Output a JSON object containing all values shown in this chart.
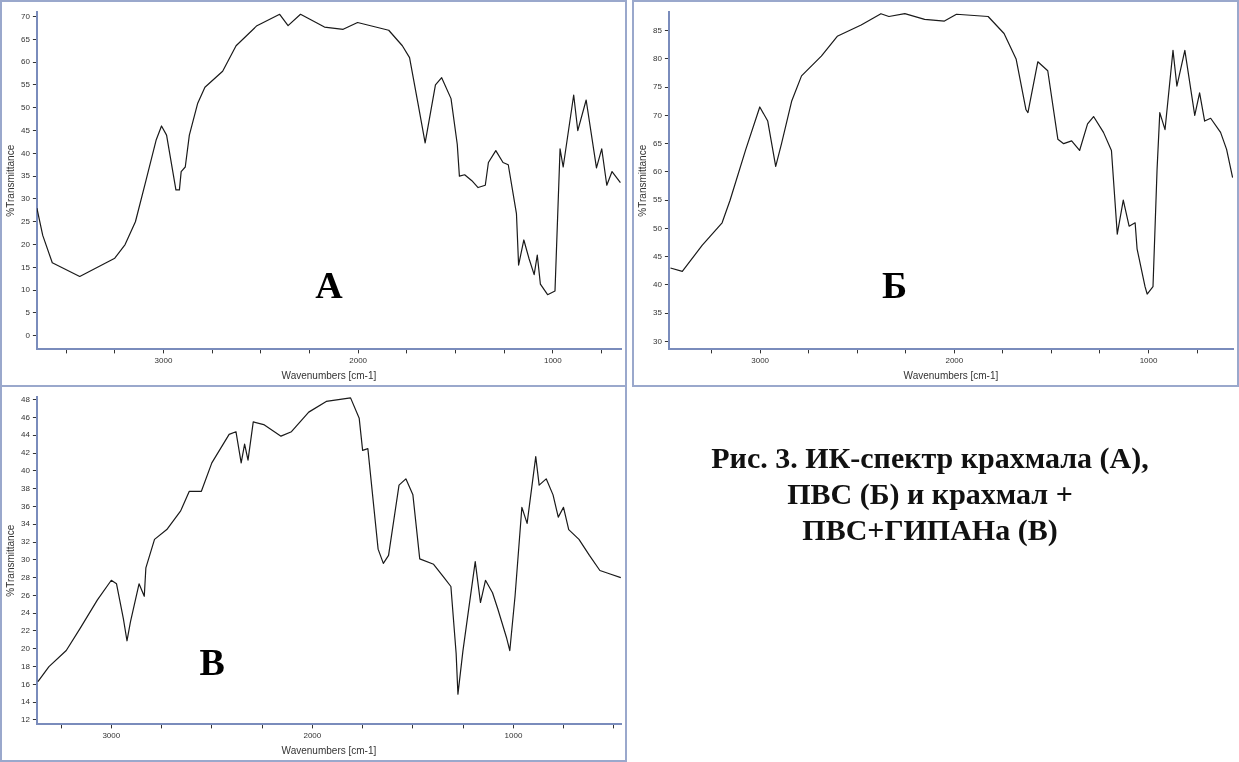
{
  "chart_data": [
    {
      "type": "line",
      "xlabel": "Wavenumbers [cm-1]",
      "ylabel": "%Transmittance",
      "annotations": [
        "А"
      ],
      "marker": "none",
      "grid": false,
      "legend": false,
      "xlim": [
        3650,
        650
      ],
      "xticks": [
        {
          "value": 3500,
          "label": null
        },
        {
          "value": 3250,
          "label": null
        },
        3000,
        {
          "value": 2750,
          "label": null
        },
        {
          "value": 2500,
          "label": null
        },
        {
          "value": 2250,
          "label": null
        },
        2000,
        {
          "value": 1750,
          "label": null
        },
        {
          "value": 1500,
          "label": null
        },
        {
          "value": 1250,
          "label": null
        },
        1000,
        {
          "value": 750,
          "label": null
        }
      ],
      "ylim": [
        -3,
        71
      ],
      "yticks": [
        0,
        5,
        10,
        15,
        20,
        25,
        30,
        35,
        40,
        45,
        50,
        55,
        60,
        65,
        70
      ],
      "series": [
        {
          "color": "#1a1a1a",
          "x": [
            3650,
            3620,
            3571,
            3430,
            3250,
            3197,
            3144,
            3090,
            3037,
            3010,
            2984,
            2936,
            2918,
            2909,
            2888,
            2867,
            2824,
            2787,
            2696,
            2627,
            2520,
            2403,
            2360,
            2296,
            2173,
            2077,
            2003,
            1843,
            1773,
            1736,
            1693,
            1656,
            1603,
            1571,
            1523,
            1491,
            1480,
            1453,
            1416,
            1384,
            1347,
            1331,
            1293,
            1256,
            1229,
            1187,
            1176,
            1149,
            1123,
            1096,
            1080,
            1064,
            1027,
            989,
            963,
            947,
            893,
            872,
            829,
            776,
            749,
            723,
            696,
            653
          ],
          "values": [
            28,
            22,
            16,
            13,
            17,
            20,
            25,
            34,
            43,
            46,
            44,
            32,
            32,
            36,
            37,
            44,
            51,
            54.5,
            58,
            63.6,
            68,
            70.5,
            68,
            70.5,
            67.7,
            67.2,
            68.7,
            67,
            63.6,
            61,
            51,
            42.3,
            55,
            56.6,
            52,
            42,
            35,
            35.3,
            34,
            32.5,
            33,
            38,
            40.6,
            38,
            37.5,
            26.8,
            15.5,
            21,
            17,
            13.4,
            17.7,
            11.3,
            9,
            9.8,
            41,
            37,
            52.8,
            45,
            51.7,
            36.8,
            41,
            33,
            36,
            33.6
          ]
        }
      ]
    },
    {
      "type": "line",
      "xlabel": "Wavenumbers [cm-1]",
      "ylabel": "%Transmittance",
      "annotations": [
        "Б"
      ],
      "marker": "none",
      "grid": false,
      "legend": false,
      "xlim": [
        3470,
        565
      ],
      "xticks": [
        {
          "value": 3250,
          "label": null
        },
        3000,
        {
          "value": 2750,
          "label": null
        },
        {
          "value": 2500,
          "label": null
        },
        {
          "value": 2250,
          "label": null
        },
        2000,
        {
          "value": 1750,
          "label": null
        },
        {
          "value": 1500,
          "label": null
        },
        {
          "value": 1250,
          "label": null
        },
        1000,
        {
          "value": 750,
          "label": null
        }
      ],
      "ylim": [
        28.6,
        88.3
      ],
      "yticks": [
        30,
        35,
        40,
        45,
        50,
        55,
        60,
        65,
        70,
        75,
        80,
        85
      ],
      "series": [
        {
          "color": "#1a1a1a",
          "x": [
            3462,
            3401,
            3299,
            3196,
            3155,
            3074,
            3002,
            2961,
            2920,
            2890,
            2838,
            2787,
            2685,
            2603,
            2480,
            2378,
            2337,
            2255,
            2153,
            2051,
            1989,
            1826,
            1744,
            1682,
            1631,
            1621,
            1570,
            1519,
            1467,
            1437,
            1396,
            1355,
            1314,
            1283,
            1232,
            1191,
            1161,
            1130,
            1100,
            1069,
            1059,
            1018,
            1007,
            977,
            956,
            942,
            915,
            874,
            854,
            813,
            762,
            737,
            711,
            680,
            629,
            598,
            567
          ],
          "values": [
            43,
            42.4,
            47,
            51,
            55,
            64,
            71.5,
            69,
            61,
            65,
            72.5,
            77,
            80.5,
            84,
            86,
            88,
            87.5,
            88,
            87,
            86.7,
            87.9,
            87.5,
            84.5,
            80,
            71,
            70.5,
            79.5,
            77.9,
            65.8,
            65,
            65.5,
            63.8,
            68.5,
            69.8,
            67,
            63.8,
            49,
            55,
            50.4,
            51,
            46.4,
            39.7,
            38.4,
            39.7,
            60.5,
            70.5,
            67.5,
            81.5,
            75.2,
            81.5,
            70,
            74,
            69,
            69.5,
            67,
            64,
            59
          ]
        }
      ]
    },
    {
      "type": "line",
      "xlabel": "Wavenumbers [cm-1]",
      "ylabel": "%Transmittance",
      "annotations": [
        "В"
      ],
      "marker": "none",
      "grid": false,
      "legend": false,
      "xlim": [
        3370,
        465
      ],
      "xticks": [
        {
          "value": 3250,
          "label": null
        },
        3000,
        {
          "value": 2750,
          "label": null
        },
        {
          "value": 2500,
          "label": null
        },
        {
          "value": 2250,
          "label": null
        },
        2000,
        {
          "value": 1750,
          "label": null
        },
        {
          "value": 1500,
          "label": null
        },
        {
          "value": 1250,
          "label": null
        },
        1000,
        {
          "value": 750,
          "label": null
        },
        {
          "value": 500,
          "label": null
        }
      ],
      "ylim": [
        11.5,
        48.3
      ],
      "yticks": [
        12,
        14,
        16,
        18,
        20,
        22,
        24,
        26,
        28,
        30,
        32,
        34,
        36,
        38,
        40,
        42,
        44,
        46,
        48
      ],
      "series": [
        {
          "color": "#1a1a1a",
          "x": [
            3365,
            3310,
            3224,
            3155,
            3069,
            3000,
            2974,
            2940,
            2922,
            2905,
            2862,
            2836,
            2828,
            2785,
            2724,
            2655,
            2612,
            2552,
            2500,
            2414,
            2380,
            2354,
            2337,
            2320,
            2294,
            2242,
            2156,
            2104,
            2018,
            1931,
            1810,
            1767,
            1750,
            1724,
            1673,
            1647,
            1621,
            1569,
            1535,
            1500,
            1466,
            1397,
            1345,
            1311,
            1285,
            1276,
            1251,
            1190,
            1164,
            1139,
            1104,
            1078,
            1035,
            1018,
            992,
            958,
            932,
            889,
            872,
            837,
            803,
            777,
            751,
            725,
            674,
            622,
            570,
            519,
            466
          ],
          "values": [
            16.3,
            18,
            19.8,
            22.3,
            25.5,
            27.7,
            27.3,
            23.4,
            20.9,
            23,
            27.3,
            25.9,
            29.1,
            32.3,
            33.4,
            35.5,
            37.7,
            37.7,
            40.9,
            44.1,
            44.4,
            40.9,
            43,
            41.2,
            45.5,
            45.2,
            43.9,
            44.4,
            46.6,
            47.8,
            48.2,
            45.9,
            42.3,
            42.5,
            31.2,
            29.6,
            30.5,
            38.4,
            39.1,
            37.3,
            30.1,
            29.5,
            28,
            27,
            19.5,
            14.9,
            19.8,
            29.8,
            25.2,
            27.7,
            26.3,
            24.5,
            21.3,
            19.8,
            25.9,
            35.9,
            34.1,
            41.6,
            38.4,
            39.1,
            37.3,
            34.8,
            35.9,
            33.4,
            32.3,
            30.5,
            28.8,
            28.4,
            28
          ]
        }
      ]
    },
    {
      "type": "other",
      "annotations": [
        "Рис. 3. ИК-спектр крахмала (А), ПВС (Б) и крахмал + ПВС+ГИПАНа (В)"
      ]
    }
  ]
}
